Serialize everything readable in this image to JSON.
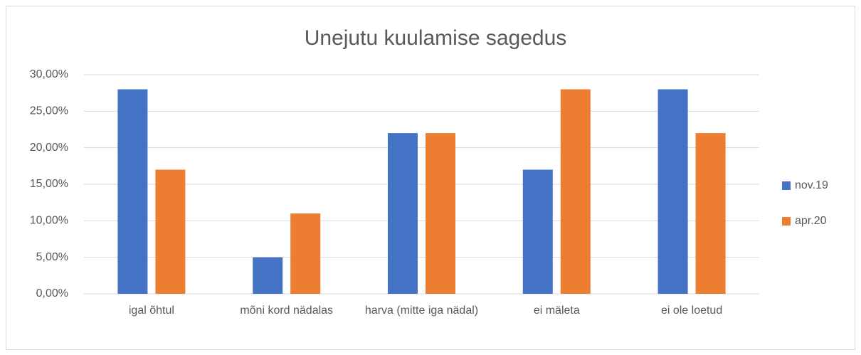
{
  "chart_data": {
    "type": "bar",
    "title": "Unejutu kuulamise sagedus",
    "categories": [
      "igal õhtul",
      "mõni kord nädalas",
      "harva (mitte iga nädal)",
      "ei mäleta",
      "ei ole loetud"
    ],
    "series": [
      {
        "name": "nov.19",
        "color": "#4472c4",
        "values": [
          28,
          5,
          22,
          17,
          28
        ]
      },
      {
        "name": "apr.20",
        "color": "#ed7d31",
        "values": [
          17,
          11,
          22,
          28,
          22
        ]
      }
    ],
    "ylim": [
      0,
      30
    ],
    "yticks": [
      {
        "value": 0,
        "label": "0,00%"
      },
      {
        "value": 5,
        "label": "5,00%"
      },
      {
        "value": 10,
        "label": "10,00%"
      },
      {
        "value": 15,
        "label": "15,00%"
      },
      {
        "value": 20,
        "label": "20,00%"
      },
      {
        "value": 25,
        "label": "25,00%"
      },
      {
        "value": 30,
        "label": "30,00%"
      }
    ],
    "grid": true,
    "legend": "right"
  }
}
